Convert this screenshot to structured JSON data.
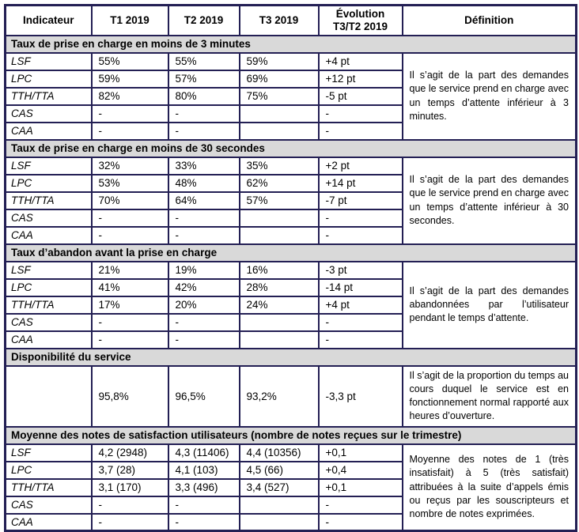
{
  "theme": {
    "border_color": "#231f54",
    "band_background": "#d9d9d9",
    "text_color": "#000000"
  },
  "table": {
    "header": [
      "Indicateur",
      "T1 2019",
      "T2 2019",
      "T3 2019",
      "Évolution T3/T2 2019",
      "Définition"
    ],
    "sections": [
      {
        "title": "Taux de prise en charge en moins de 3 minutes",
        "definition": "Il s’agit de la part des demandes que le service prend en charge avec un temps d’attente inférieur à 3 minutes.",
        "rows": [
          {
            "label": "LSF",
            "t1": "55%",
            "t2": "55%",
            "t3": "59%",
            "evolution": "+4 pt"
          },
          {
            "label": "LPC",
            "t1": "59%",
            "t2": "57%",
            "t3": "69%",
            "evolution": "+12 pt"
          },
          {
            "label": "TTH/TTA",
            "t1": "82%",
            "t2": "80%",
            "t3": "75%",
            "evolution": "-5 pt"
          },
          {
            "label": "CAS",
            "t1": "-",
            "t2": "-",
            "t3": "",
            "evolution": "-"
          },
          {
            "label": "CAA",
            "t1": "-",
            "t2": "-",
            "t3": "",
            "evolution": "-"
          }
        ]
      },
      {
        "title": "Taux de prise en charge en moins de 30 secondes",
        "definition": "Il s’agit de la part des demandes que le service prend en charge avec un temps d’attente inférieur à 30 secondes.",
        "rows": [
          {
            "label": "LSF",
            "t1": "32%",
            "t2": "33%",
            "t3": "35%",
            "evolution": "+2 pt"
          },
          {
            "label": "LPC",
            "t1": "53%",
            "t2": "48%",
            "t3": "62%",
            "evolution": "+14 pt"
          },
          {
            "label": "TTH/TTA",
            "t1": "70%",
            "t2": "64%",
            "t3": "57%",
            "evolution": "-7 pt"
          },
          {
            "label": "CAS",
            "t1": "-",
            "t2": "-",
            "t3": "",
            "evolution": "-"
          },
          {
            "label": "CAA",
            "t1": "-",
            "t2": "-",
            "t3": "",
            "evolution": "-"
          }
        ]
      },
      {
        "title": "Taux d’abandon avant la prise en charge",
        "definition": "Il s’agit de la part des demandes abandonnées par l’utilisateur pendant le temps d’attente.",
        "rows": [
          {
            "label": "LSF",
            "t1": "21%",
            "t2": "19%",
            "t3": "16%",
            "evolution": "-3 pt"
          },
          {
            "label": "LPC",
            "t1": "41%",
            "t2": "42%",
            "t3": "28%",
            "evolution": "-14 pt"
          },
          {
            "label": "TTH/TTA",
            "t1": "17%",
            "t2": "20%",
            "t3": "24%",
            "evolution": "+4 pt"
          },
          {
            "label": "CAS",
            "t1": "-",
            "t2": "-",
            "t3": "",
            "evolution": "-"
          },
          {
            "label": "CAA",
            "t1": "-",
            "t2": "-",
            "t3": "",
            "evolution": "-"
          }
        ]
      },
      {
        "title": "Disponibilité du service",
        "definition": "Il s’agit de la proportion du temps au cours duquel le service est en fonctionnement normal rapporté aux heures d’ouverture.",
        "rows": [
          {
            "label": "",
            "t1": "95,8%",
            "t2": "96,5%",
            "t3": "93,2%",
            "evolution": "-3,3 pt"
          }
        ]
      },
      {
        "title": "Moyenne des notes de satisfaction utilisateurs (nombre de notes reçues sur le trimestre)",
        "definition": "Moyenne des notes de 1 (très insatisfait) à 5 (très satisfait) attribuées à la suite d’appels émis ou reçus par les souscripteurs et nombre de notes exprimées.",
        "rows": [
          {
            "label": "LSF",
            "t1": "4,2 (2948)",
            "t2": "4,3 (11406)",
            "t3": "4,4 (10356)",
            "evolution": "+0,1"
          },
          {
            "label": "LPC",
            "t1": "3,7  (28)",
            "t2": "4,1 (103)",
            "t3": "4,5 (66)",
            "evolution": "+0,4"
          },
          {
            "label": "TTH/TTA",
            "t1": "3,1  (170)",
            "t2": "3,3 (496)",
            "t3": "3,4 (527)",
            "evolution": "+0,1"
          },
          {
            "label": "CAS",
            "t1": "-",
            "t2": "-",
            "t3": "",
            "evolution": "-"
          },
          {
            "label": "CAA",
            "t1": "-",
            "t2": "-",
            "t3": "",
            "evolution": "-"
          }
        ]
      }
    ]
  }
}
